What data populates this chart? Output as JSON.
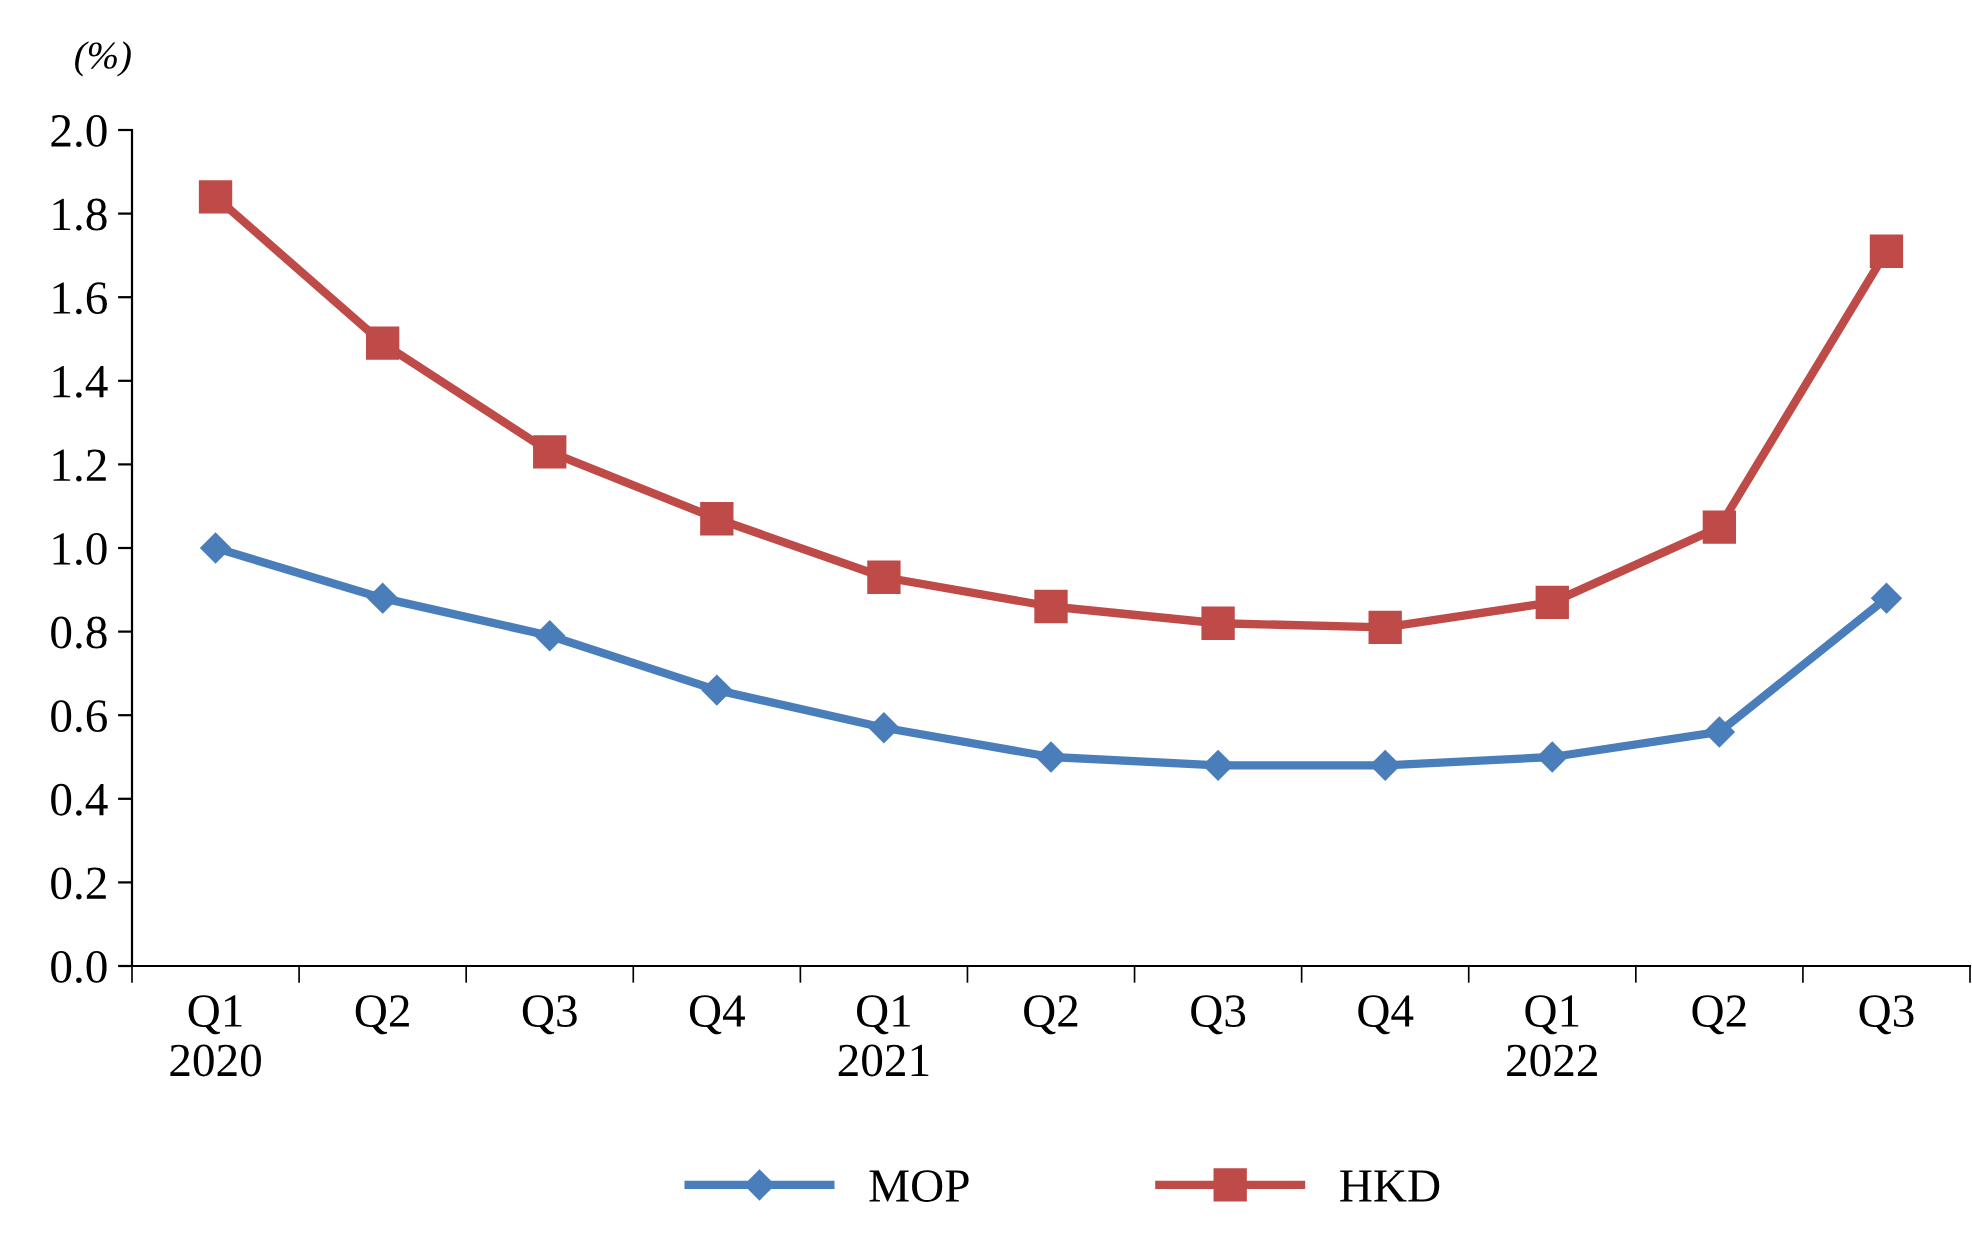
{
  "chart_data": {
    "type": "line",
    "ylabel": "(%)",
    "categories": [
      "Q1\n2020",
      "Q2",
      "Q3",
      "Q4",
      "Q1\n2021",
      "Q2",
      "Q3",
      "Q4",
      "Q1\n2022",
      "Q2",
      "Q3"
    ],
    "series": [
      {
        "name": "MOP",
        "color": "#4a7ebb",
        "marker": "diamond",
        "values": [
          1.0,
          0.88,
          0.79,
          0.66,
          0.57,
          0.5,
          0.48,
          0.48,
          0.5,
          0.56,
          0.88
        ]
      },
      {
        "name": "HKD",
        "color": "#be4b48",
        "marker": "square",
        "values": [
          1.84,
          1.49,
          1.23,
          1.07,
          0.93,
          0.86,
          0.82,
          0.81,
          0.87,
          1.05,
          1.71
        ]
      }
    ],
    "ylim": [
      0,
      2.0
    ],
    "yticks": [
      {
        "value": 0,
        "label": "0.0"
      },
      {
        "value": 0.2,
        "label": "0.2"
      },
      {
        "value": 0.4,
        "label": "0.4"
      },
      {
        "value": 0.6,
        "label": "0.6"
      },
      {
        "value": 0.8,
        "label": "0.8"
      },
      {
        "value": 1.0,
        "label": "1.0"
      },
      {
        "value": 1.2,
        "label": "1.2"
      },
      {
        "value": 1.4,
        "label": "1.4"
      },
      {
        "value": 1.6,
        "label": "1.6"
      },
      {
        "value": 1.8,
        "label": "1.8"
      },
      {
        "value": 2.0,
        "label": "2.0"
      }
    ],
    "grid": false,
    "legend": "bottom",
    "line_style": "solid"
  }
}
